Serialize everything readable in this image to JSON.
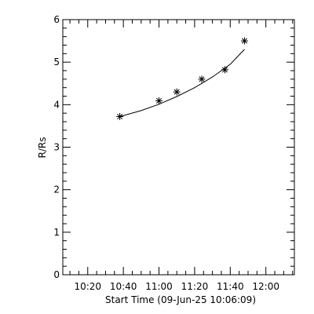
{
  "chart_data": {
    "type": "scatter",
    "title": "",
    "xlabel": "Start Time (09-Jun-25 10:06:09)",
    "ylabel": "R/Rs",
    "xlim": [
      "10:06",
      "12:16"
    ],
    "ylim": [
      0,
      6
    ],
    "x_ticks": [
      "10:20",
      "10:40",
      "11:00",
      "11:20",
      "11:40",
      "12:00"
    ],
    "y_ticks": [
      "0",
      "1",
      "2",
      "3",
      "4",
      "5",
      "6"
    ],
    "grid": false,
    "marker": "asterisk",
    "series": [
      {
        "x": [
          "10:38",
          "11:00",
          "11:10",
          "11:24",
          "11:37",
          "11:48"
        ],
        "y": [
          3.72,
          4.09,
          4.3,
          4.6,
          4.82,
          5.5
        ]
      }
    ],
    "fit_line": {
      "x": [
        "10:38",
        "10:50",
        "11:00",
        "11:10",
        "11:20",
        "11:30",
        "11:40",
        "11:48"
      ],
      "y": [
        3.72,
        3.86,
        4.01,
        4.19,
        4.4,
        4.65,
        4.95,
        5.3
      ]
    }
  }
}
